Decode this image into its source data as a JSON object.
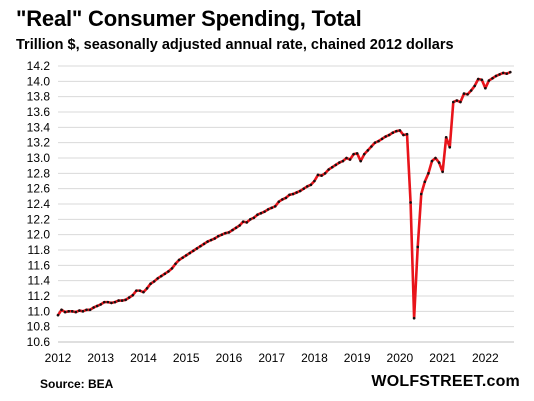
{
  "title": "\"Real\" Consumer Spending, Total",
  "subtitle": "Trillion $, seasonally adjusted annual rate, chained 2012 dollars",
  "source": "Source: BEA",
  "brand": "WOLFSTREET.com",
  "colors": {
    "line": "#e8141b",
    "marker": "#111111",
    "grid": "#d9d9d9"
  },
  "chart_data": {
    "type": "line",
    "title": "\"Real\" Consumer Spending, Total",
    "subtitle": "Trillion $, seasonally adjusted annual rate, chained 2012 dollars",
    "xlabel": "",
    "ylabel": "",
    "ylim": [
      10.6,
      14.2
    ],
    "yticks": [
      "14.2",
      "14.0",
      "13.8",
      "13.6",
      "13.4",
      "13.2",
      "13.0",
      "12.8",
      "12.6",
      "12.4",
      "12.2",
      "12.0",
      "11.8",
      "11.6",
      "11.4",
      "11.2",
      "11.0",
      "10.8",
      "10.6"
    ],
    "xtick_labels": [
      "2012",
      "2013",
      "2014",
      "2015",
      "2016",
      "2017",
      "2018",
      "2019",
      "2020",
      "2021",
      "2022"
    ],
    "xlim": [
      2012.0,
      2022.67
    ],
    "grid": "horizontal",
    "legend": "none",
    "series": [
      {
        "name": "",
        "x": [
          2012.0,
          2012.083,
          2012.167,
          2012.25,
          2012.333,
          2012.417,
          2012.5,
          2012.583,
          2012.667,
          2012.75,
          2012.833,
          2012.917,
          2013.0,
          2013.083,
          2013.167,
          2013.25,
          2013.333,
          2013.417,
          2013.5,
          2013.583,
          2013.667,
          2013.75,
          2013.833,
          2013.917,
          2014.0,
          2014.083,
          2014.167,
          2014.25,
          2014.333,
          2014.417,
          2014.5,
          2014.583,
          2014.667,
          2014.75,
          2014.833,
          2014.917,
          2015.0,
          2015.083,
          2015.167,
          2015.25,
          2015.333,
          2015.417,
          2015.5,
          2015.583,
          2015.667,
          2015.75,
          2015.833,
          2015.917,
          2016.0,
          2016.083,
          2016.167,
          2016.25,
          2016.333,
          2016.417,
          2016.5,
          2016.583,
          2016.667,
          2016.75,
          2016.833,
          2016.917,
          2017.0,
          2017.083,
          2017.167,
          2017.25,
          2017.333,
          2017.417,
          2017.5,
          2017.583,
          2017.667,
          2017.75,
          2017.833,
          2017.917,
          2018.0,
          2018.083,
          2018.167,
          2018.25,
          2018.333,
          2018.417,
          2018.5,
          2018.583,
          2018.667,
          2018.75,
          2018.833,
          2018.917,
          2019.0,
          2019.083,
          2019.167,
          2019.25,
          2019.333,
          2019.417,
          2019.5,
          2019.583,
          2019.667,
          2019.75,
          2019.833,
          2019.917,
          2020.0,
          2020.083,
          2020.167,
          2020.25,
          2020.333,
          2020.417,
          2020.5,
          2020.583,
          2020.667,
          2020.75,
          2020.833,
          2020.917,
          2021.0,
          2021.083,
          2021.167,
          2021.25,
          2021.333,
          2021.417,
          2021.5,
          2021.583,
          2021.667,
          2021.75,
          2021.833,
          2021.917,
          2022.0,
          2022.083,
          2022.167,
          2022.25,
          2022.333,
          2022.417,
          2022.5,
          2022.583
        ],
        "values": [
          10.95,
          11.02,
          10.99,
          11.0,
          11.0,
          10.99,
          11.01,
          11.0,
          11.02,
          11.02,
          11.05,
          11.07,
          11.09,
          11.12,
          11.12,
          11.11,
          11.12,
          11.14,
          11.14,
          11.15,
          11.18,
          11.21,
          11.27,
          11.27,
          11.25,
          11.3,
          11.36,
          11.39,
          11.43,
          11.46,
          11.49,
          11.52,
          11.56,
          11.62,
          11.67,
          11.7,
          11.73,
          11.76,
          11.79,
          11.82,
          11.85,
          11.88,
          11.91,
          11.93,
          11.95,
          11.98,
          12.0,
          12.02,
          12.03,
          12.06,
          12.09,
          12.12,
          12.17,
          12.16,
          12.2,
          12.22,
          12.26,
          12.28,
          12.3,
          12.33,
          12.35,
          12.37,
          12.43,
          12.46,
          12.48,
          12.52,
          12.53,
          12.55,
          12.57,
          12.6,
          12.63,
          12.65,
          12.7,
          12.78,
          12.77,
          12.8,
          12.85,
          12.88,
          12.91,
          12.94,
          12.96,
          13.0,
          12.98,
          13.05,
          13.06,
          12.96,
          13.05,
          13.1,
          13.15,
          13.2,
          13.22,
          13.25,
          13.28,
          13.3,
          13.33,
          13.35,
          13.36,
          13.3,
          13.31,
          12.42,
          10.91,
          11.84,
          12.53,
          12.69,
          12.8,
          12.96,
          13.0,
          12.94,
          12.82,
          13.27,
          13.14,
          13.73,
          13.75,
          13.73,
          13.84,
          13.83,
          13.88,
          13.94,
          14.03,
          14.02,
          13.91,
          14.01,
          14.04,
          14.07,
          14.09,
          14.11,
          14.1,
          14.12
        ]
      }
    ]
  }
}
